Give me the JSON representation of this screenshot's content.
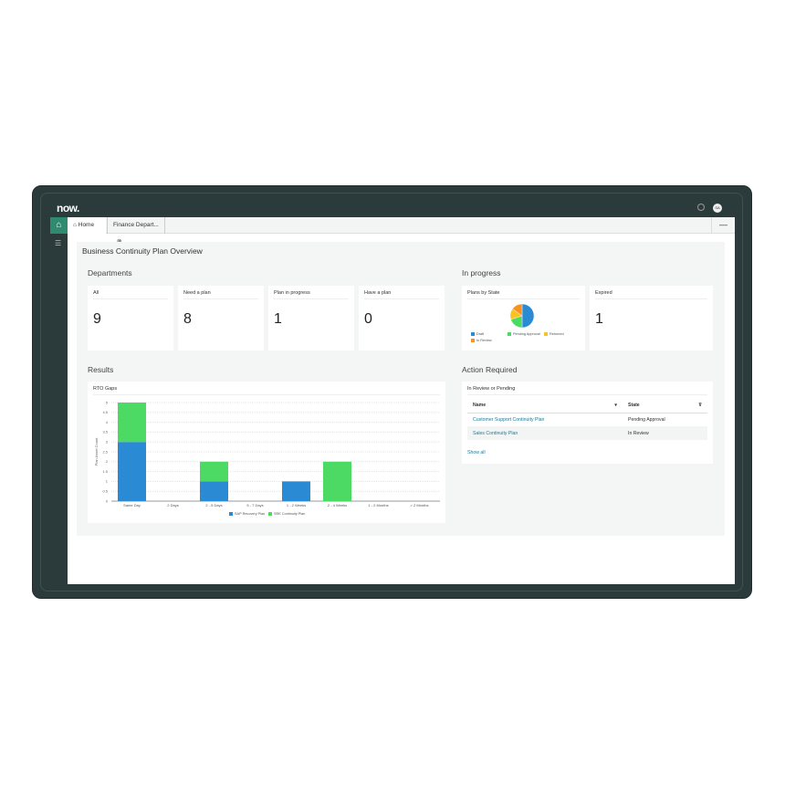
{
  "app": {
    "logo": "now.",
    "avatar": "SA"
  },
  "tabs": [
    {
      "label": "Home"
    },
    {
      "label": "Finance Depart..."
    }
  ],
  "page_title": "Business Continuity Plan Overview",
  "departments": {
    "title": "Departments",
    "cards": [
      {
        "label": "All",
        "value": "9"
      },
      {
        "label": "Need a plan",
        "value": "8"
      },
      {
        "label": "Plan in progress",
        "value": "1"
      },
      {
        "label": "Have a plan",
        "value": "0"
      }
    ]
  },
  "in_progress": {
    "title": "In progress",
    "plans_by_state": {
      "title": "Plans by State"
    },
    "expired": {
      "label": "Expired",
      "value": "1"
    }
  },
  "results": {
    "title": "Results"
  },
  "action": {
    "title": "Action Required",
    "card_title": "In Review or Pending",
    "columns": [
      "Name",
      "State"
    ],
    "rows": [
      [
        "Customer Support Continuity Plan",
        "Pending Approval"
      ],
      [
        "Sales Continuity Plan",
        "In Review"
      ]
    ],
    "show_all": "Show all"
  },
  "chart_data": [
    {
      "type": "bar",
      "stacked": true,
      "title": "RTO Gaps",
      "ylabel": "Plan Asset Count",
      "xlabel": "",
      "ylim": [
        0,
        5
      ],
      "yticks": [
        "0",
        "0.5",
        "1",
        "1.5",
        "2",
        "2.5",
        "3",
        "3.5",
        "4",
        "4.5",
        "5"
      ],
      "categories": [
        "Same Day",
        "2 Days",
        "2 - 5 Days",
        "5 - 7 Days",
        "1 - 2 Weeks",
        "2 - 4 Weeks",
        "1 - 2 Months",
        "> 2 Months"
      ],
      "series": [
        {
          "name": "SAP Recovery Plan",
          "color": "#2a8bd4",
          "values": [
            3,
            0,
            1,
            0,
            1,
            0,
            0,
            0
          ]
        },
        {
          "name": "SRE Continuity Plan",
          "color": "#4cd964",
          "values": [
            2,
            0,
            1,
            0,
            0,
            2,
            0,
            0
          ]
        }
      ],
      "legend": "bottom",
      "grid": true
    },
    {
      "type": "pie",
      "title": "Plans by State",
      "slices": [
        {
          "name": "Draft",
          "value": 50,
          "color": "#2a8bd4"
        },
        {
          "name": "Pending Approval",
          "value": 20,
          "color": "#4cd964"
        },
        {
          "name": "Returned",
          "value": 15,
          "color": "#f7c325"
        },
        {
          "name": "In Review",
          "value": 15,
          "color": "#f7931e"
        }
      ],
      "legend": "bottom"
    }
  ]
}
